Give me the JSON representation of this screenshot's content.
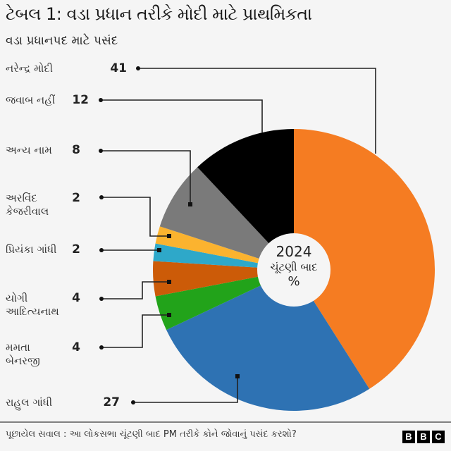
{
  "header": {
    "title": "ટેબલ 1: વડા પ્રધાન તરીકે મોદી માટે પ્રાથમિકતા",
    "subtitle": "વડા પ્રધાનપદ માટે પસંદ"
  },
  "center_label": {
    "year": "2024",
    "line2": "ચૂંટણી બાદ",
    "unit": "%"
  },
  "legend": [
    {
      "label": "નરેન્દ્ર મોદી",
      "value": "41"
    },
    {
      "label": "જવાબ નહીં",
      "value": "12"
    },
    {
      "label": "અન્ય નામ",
      "value": "8"
    },
    {
      "label": "અરવિંદ કેજરીવાલ",
      "line1": "અરવિંદ",
      "line2": "કેજરીવાલ",
      "value": "2"
    },
    {
      "label": "પ્રિયંકા ગાંધી",
      "value": "2"
    },
    {
      "label": "યોગી આદિત્યનાથ",
      "line1": "યોગી",
      "line2": "આદિત્યનાથ",
      "value": "4"
    },
    {
      "label": "મમતા બેનરજી",
      "line1": "મમતા",
      "line2": "બેનરજી",
      "value": "4"
    },
    {
      "label": "રાહુલ ગાંધી",
      "value": "27"
    }
  ],
  "footer": {
    "question": "પૂછાયેલ સવાલ : આ લોકસભા ચૂંટણી બાદ PM તરીકે કોને જોવાનું પસંદ કરશો?",
    "logo": [
      "B",
      "B",
      "C"
    ]
  },
  "chart_data": {
    "type": "pie",
    "subtype": "donut",
    "title": "ટેબલ 1: વડા પ્રધાન તરીકે મોદી માટે પ્રાથમિકતા",
    "subtitle": "વડા પ્રધાનપદ માટે પસંદ",
    "center_label": "2024 ચૂંટણી બાદ %",
    "unit": "%",
    "start_angle": "12 o'clock, clockwise",
    "categories": [
      "નરેન્દ્ર મોદી",
      "રાહુલ ગાંધી",
      "મમતા બેનરજી",
      "યોગી આદિત્યનાથ",
      "પ્રિયંકા ગાંધી",
      "અરવિંદ કેજરીવાલ",
      "અન્ય નામ",
      "જવાબ નહીં"
    ],
    "values": [
      41,
      27,
      4,
      4,
      2,
      2,
      8,
      12
    ],
    "colors": [
      "#f57c22",
      "#2e72b3",
      "#22a31a",
      "#cc5b08",
      "#2ea8c9",
      "#fbb32f",
      "#7a7a7a",
      "#000000"
    ],
    "legend_position": "left, with leader lines",
    "note": "પૂછાયેલ સવાલ : આ લોકસભા ચૂંટણી બાદ PM તરીકે કોને જોવાનું પસંદ કરશો?",
    "source_logo": "BBC"
  }
}
